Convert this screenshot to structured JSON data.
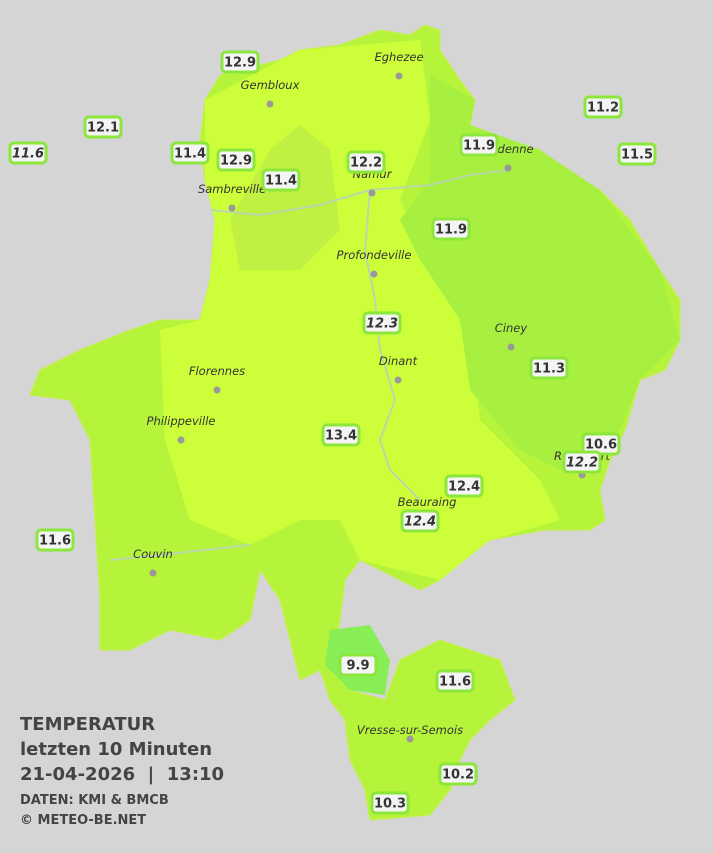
{
  "header": {
    "title": "TEMPERATUR",
    "subtitle": "letzten 10 Minuten",
    "timestamp": "21-04-2026  |  13:10",
    "source": "DATEN: KMI & BMCB",
    "credit": "© METEO-BE.NET"
  },
  "cities": [
    "Eghezee",
    "Gembloux",
    "Andenne",
    "Namur",
    "Sambreville",
    "Profondeville",
    "Ciney",
    "Florennes",
    "Dinant",
    "Philippeville",
    "Rochefort",
    "Beauraing",
    "Couvin",
    "Vresse-sur-Semois"
  ],
  "stations": [
    {
      "value": 12.9
    },
    {
      "value": 12.1
    },
    {
      "value": 11.6,
      "italic": true
    },
    {
      "value": 11.4
    },
    {
      "value": 12.9
    },
    {
      "value": 11.4
    },
    {
      "value": 12.2
    },
    {
      "value": 11.9
    },
    {
      "value": 11.2
    },
    {
      "value": 11.5
    },
    {
      "value": 11.9
    },
    {
      "value": 12.3,
      "italic": true
    },
    {
      "value": 11.3
    },
    {
      "value": 13.4
    },
    {
      "value": 10.6
    },
    {
      "value": 12.2,
      "italic": true
    },
    {
      "value": 12.4
    },
    {
      "value": 12.4,
      "italic": true
    },
    {
      "value": 11.6
    },
    {
      "value": 9.9
    },
    {
      "value": 11.6
    },
    {
      "value": 10.2
    },
    {
      "value": 10.3
    }
  ]
}
